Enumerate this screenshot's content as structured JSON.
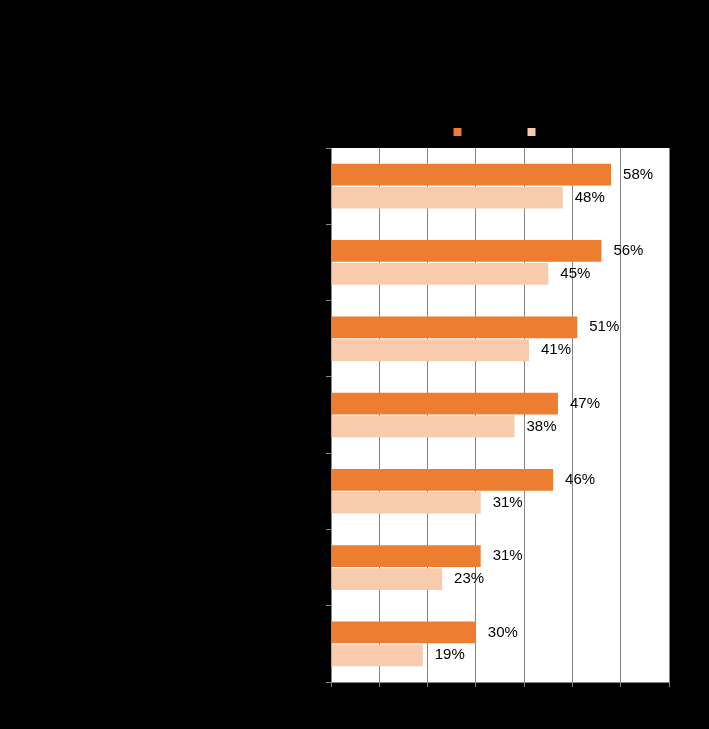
{
  "chart_data": {
    "type": "bar",
    "orientation": "horizontal",
    "categories": [
      null,
      null,
      null,
      null,
      null,
      null,
      null
    ],
    "series": [
      {
        "color": "#ED7D31",
        "values": [
          58,
          56,
          51,
          47,
          46,
          31,
          30
        ],
        "value_labels": [
          "58%",
          "56%",
          "51%",
          "47%",
          "46%",
          "31%",
          "30%"
        ]
      },
      {
        "color": "#F8CBAD",
        "values": [
          48,
          45,
          41,
          38,
          31,
          23,
          19
        ],
        "value_labels": [
          "48%",
          "45%",
          "41%",
          "38%",
          "31%",
          "23%",
          "19%"
        ]
      }
    ],
    "xlim": [
      0,
      70
    ],
    "xticks": [
      0,
      10,
      20,
      30,
      40,
      50,
      60,
      70
    ],
    "grid": true,
    "legend": "top",
    "data_labels": true,
    "tick_labels": false
  }
}
